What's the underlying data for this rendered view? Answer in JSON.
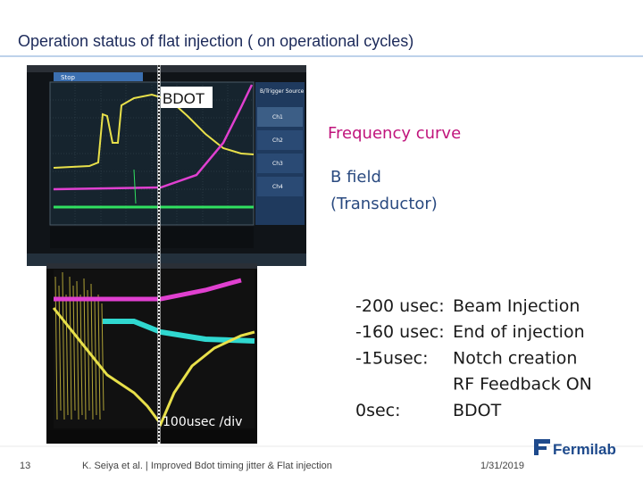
{
  "header": {
    "title": "Operation status of flat injection ( on operational cycles)"
  },
  "scope_top": {
    "status": "Stop",
    "menu": [
      "B/Trigger Source",
      "Ch1",
      "Ch2",
      "Ch3",
      "Ch4"
    ]
  },
  "annotations": {
    "bdot": "BDOT",
    "frequency_curve": "Frequency curve",
    "b_field": [
      "B field",
      "(Transductor)"
    ],
    "time_div": "100usec /div"
  },
  "events": [
    {
      "time": "-200 usec:",
      "label": [
        "Beam Injection"
      ]
    },
    {
      "time": "-160 usec:",
      "label": [
        "End of injection"
      ]
    },
    {
      "time": "-15usec:",
      "label": [
        "Notch creation",
        "RF Feedback ON"
      ]
    },
    {
      "time": "0sec:",
      "label": [
        "BDOT"
      ]
    }
  ],
  "footer": {
    "page": "13",
    "citation": "K. Seiya et al. | Improved Bdot timing jitter & Flat injection",
    "logo": "Fermilab",
    "date": "1/31/2019"
  }
}
